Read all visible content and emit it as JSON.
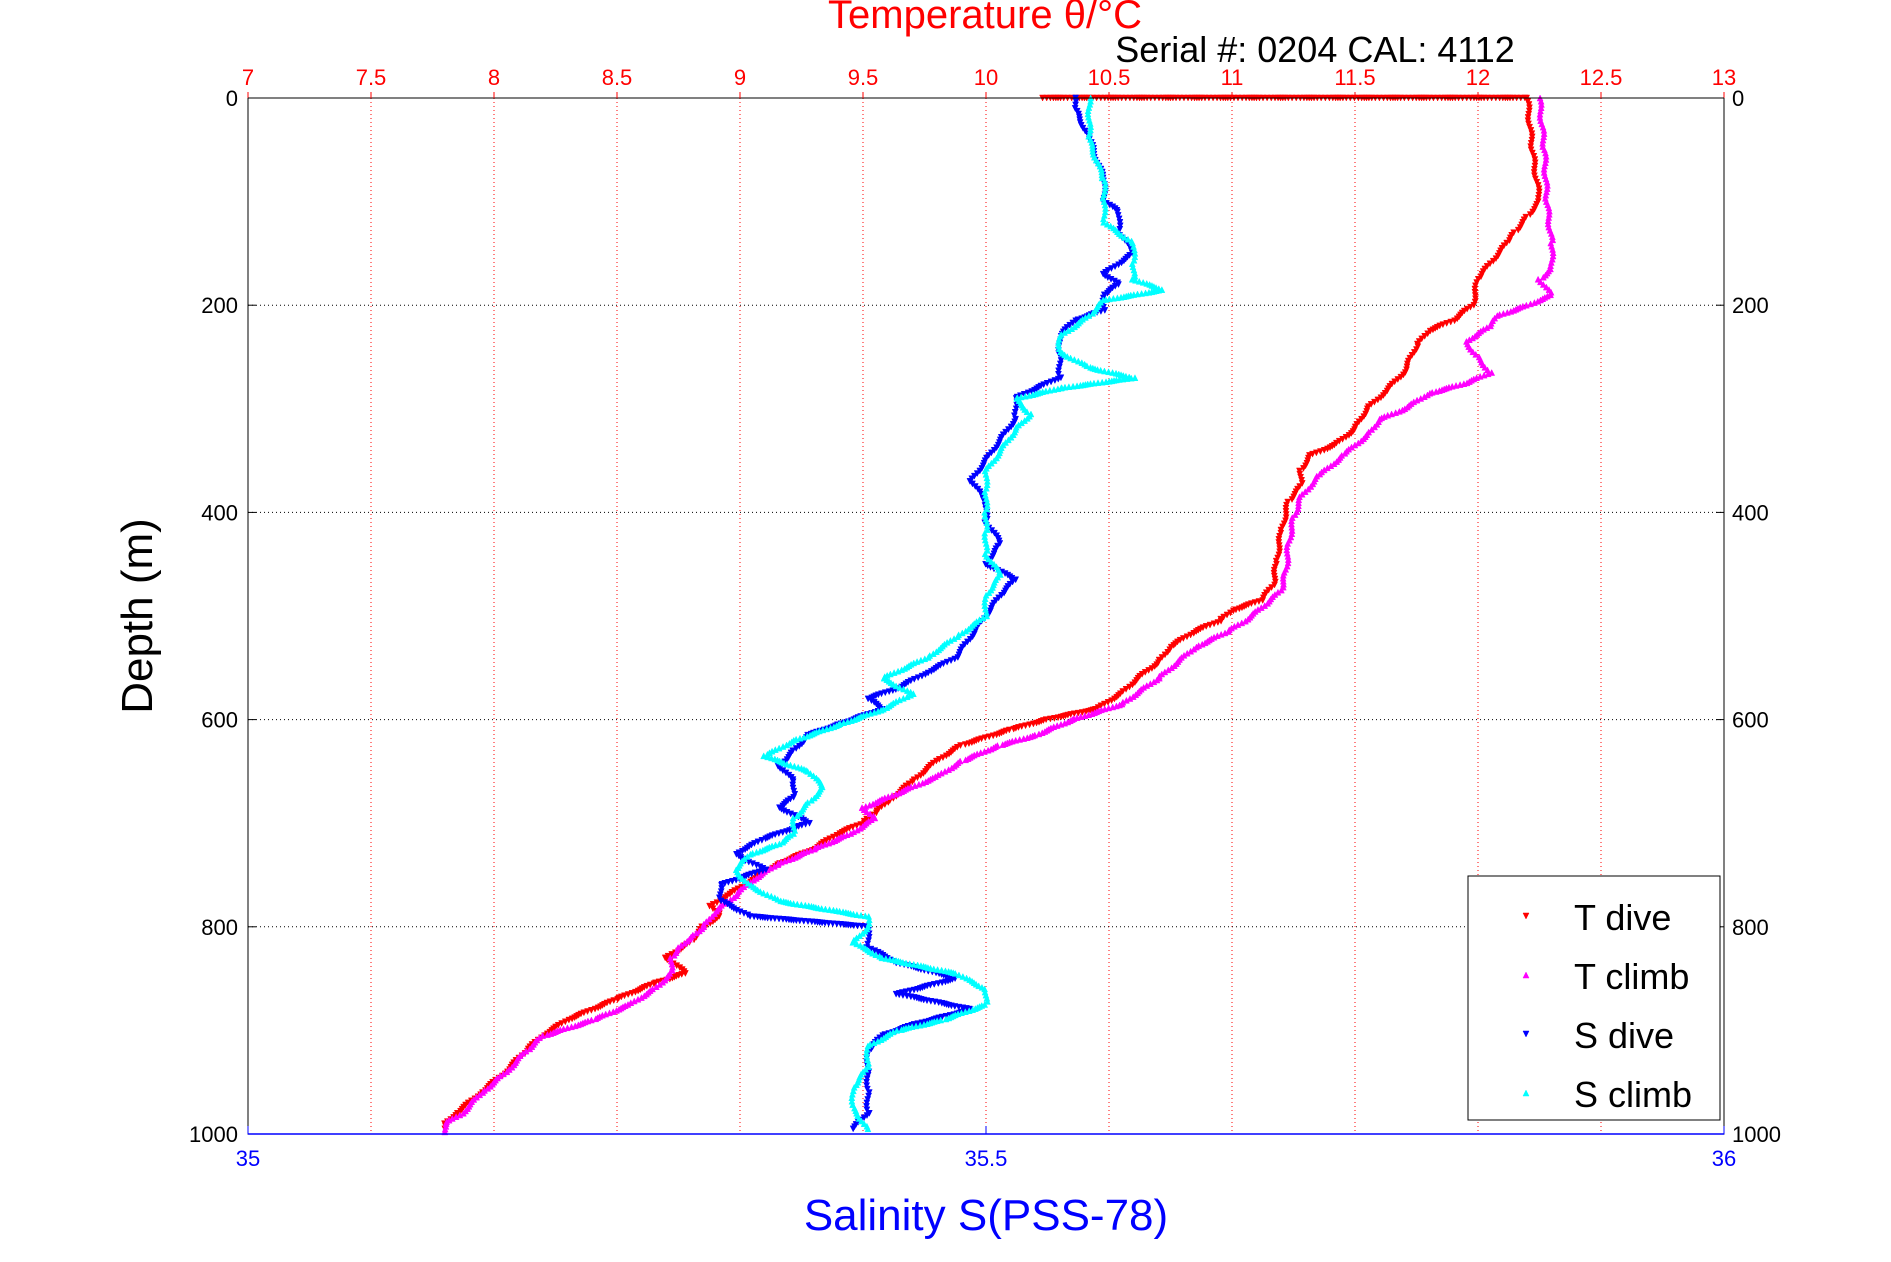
{
  "chart_data": {
    "type": "scatter",
    "title": "Temperature θ/°C",
    "subtitle": "Serial #: 0204  CAL: 4112",
    "ylabel": "Depth (m)",
    "xlabel": "Salinity S(PSS-78)",
    "ylim": [
      0,
      1000
    ],
    "y_reversed": true,
    "temperature_axis": {
      "position": "top",
      "range": [
        7,
        13
      ],
      "ticks": [
        "7",
        "7.5",
        "8",
        "8.5",
        "9",
        "9.5",
        "10",
        "10.5",
        "11",
        "11.5",
        "12",
        "12.5",
        "13"
      ],
      "color": "#ff0000",
      "grid": true
    },
    "salinity_axis": {
      "position": "bottom",
      "range": [
        35,
        36
      ],
      "ticks": [
        "35",
        "35.5",
        "36"
      ],
      "color": "#0000ff"
    },
    "depth_ticks": [
      "0",
      "200",
      "400",
      "600",
      "800",
      "1000"
    ],
    "legend_position": "bottom-right",
    "series": [
      {
        "name": "T dive",
        "axis": "temperature",
        "color": "#ff0000",
        "marker": "down-triangle",
        "points": [
          [
            10.23,
            0
          ],
          [
            12.2,
            0
          ],
          [
            12.22,
            50
          ],
          [
            12.25,
            100
          ],
          [
            12.2,
            115
          ],
          [
            12.15,
            130
          ],
          [
            12.12,
            140
          ],
          [
            12.05,
            160
          ],
          [
            12.0,
            175
          ],
          [
            11.98,
            200
          ],
          [
            11.9,
            215
          ],
          [
            11.8,
            225
          ],
          [
            11.75,
            240
          ],
          [
            11.7,
            265
          ],
          [
            11.62,
            285
          ],
          [
            11.55,
            300
          ],
          [
            11.5,
            320
          ],
          [
            11.42,
            335
          ],
          [
            11.32,
            345
          ],
          [
            11.28,
            360
          ],
          [
            11.28,
            375
          ],
          [
            11.23,
            390
          ],
          [
            11.2,
            420
          ],
          [
            11.18,
            450
          ],
          [
            11.17,
            470
          ],
          [
            11.12,
            485
          ],
          [
            11.0,
            495
          ],
          [
            10.95,
            505
          ],
          [
            10.85,
            515
          ],
          [
            10.75,
            530
          ],
          [
            10.7,
            545
          ],
          [
            10.62,
            560
          ],
          [
            10.55,
            575
          ],
          [
            10.45,
            590
          ],
          [
            10.25,
            600
          ],
          [
            10.1,
            610
          ],
          [
            9.9,
            625
          ],
          [
            9.8,
            640
          ],
          [
            9.7,
            660
          ],
          [
            9.6,
            680
          ],
          [
            9.55,
            690
          ],
          [
            9.5,
            700
          ],
          [
            9.4,
            710
          ],
          [
            9.3,
            725
          ],
          [
            9.15,
            740
          ],
          [
            9.05,
            755
          ],
          [
            8.95,
            770
          ],
          [
            8.88,
            780
          ],
          [
            8.92,
            790
          ],
          [
            8.85,
            800
          ],
          [
            8.8,
            815
          ],
          [
            8.7,
            830
          ],
          [
            8.78,
            845
          ],
          [
            8.65,
            855
          ],
          [
            8.5,
            870
          ],
          [
            8.3,
            890
          ],
          [
            8.2,
            905
          ],
          [
            8.13,
            920
          ],
          [
            8.05,
            940
          ],
          [
            7.95,
            960
          ],
          [
            7.85,
            980
          ],
          [
            7.8,
            990
          ],
          [
            7.8,
            995
          ]
        ]
      },
      {
        "name": "T climb",
        "axis": "temperature",
        "color": "#ff00ff",
        "marker": "up-triangle",
        "points": [
          [
            12.25,
            0
          ],
          [
            12.27,
            50
          ],
          [
            12.28,
            100
          ],
          [
            12.3,
            140
          ],
          [
            12.3,
            165
          ],
          [
            12.25,
            175
          ],
          [
            12.3,
            190
          ],
          [
            12.2,
            200
          ],
          [
            12.08,
            210
          ],
          [
            12.05,
            220
          ],
          [
            11.95,
            235
          ],
          [
            12.0,
            250
          ],
          [
            12.05,
            265
          ],
          [
            11.95,
            275
          ],
          [
            11.8,
            285
          ],
          [
            11.7,
            300
          ],
          [
            11.6,
            310
          ],
          [
            11.55,
            325
          ],
          [
            11.45,
            345
          ],
          [
            11.35,
            365
          ],
          [
            11.28,
            385
          ],
          [
            11.25,
            405
          ],
          [
            11.23,
            430
          ],
          [
            11.22,
            455
          ],
          [
            11.2,
            475
          ],
          [
            11.13,
            490
          ],
          [
            11.05,
            505
          ],
          [
            10.98,
            515
          ],
          [
            10.85,
            530
          ],
          [
            10.7,
            560
          ],
          [
            10.55,
            585
          ],
          [
            10.35,
            600
          ],
          [
            10.2,
            615
          ],
          [
            10.05,
            625
          ],
          [
            9.9,
            640
          ],
          [
            9.8,
            655
          ],
          [
            9.7,
            665
          ],
          [
            9.5,
            685
          ],
          [
            9.55,
            695
          ],
          [
            9.45,
            710
          ],
          [
            9.3,
            725
          ],
          [
            9.15,
            740
          ],
          [
            9.05,
            755
          ],
          [
            8.98,
            770
          ],
          [
            8.9,
            785
          ],
          [
            8.85,
            800
          ],
          [
            8.8,
            810
          ],
          [
            8.75,
            820
          ],
          [
            8.72,
            830
          ],
          [
            8.72,
            845
          ],
          [
            8.65,
            860
          ],
          [
            8.55,
            875
          ],
          [
            8.4,
            890
          ],
          [
            8.2,
            905
          ],
          [
            8.13,
            920
          ],
          [
            8.05,
            940
          ],
          [
            7.95,
            960
          ],
          [
            7.87,
            980
          ],
          [
            7.8,
            990
          ],
          [
            7.8,
            998
          ]
        ]
      },
      {
        "name": "S dive",
        "axis": "salinity",
        "color": "#0000ff",
        "marker": "down-triangle",
        "points": [
          [
            35.56,
            0
          ],
          [
            35.56,
            10
          ],
          [
            35.57,
            40
          ],
          [
            35.58,
            80
          ],
          [
            35.58,
            100
          ],
          [
            35.59,
            110
          ],
          [
            35.59,
            130
          ],
          [
            35.6,
            150
          ],
          [
            35.58,
            170
          ],
          [
            35.59,
            180
          ],
          [
            35.58,
            190
          ],
          [
            35.58,
            205
          ],
          [
            35.56,
            215
          ],
          [
            35.55,
            230
          ],
          [
            35.55,
            250
          ],
          [
            35.55,
            270
          ],
          [
            35.52,
            290
          ],
          [
            35.52,
            310
          ],
          [
            35.51,
            330
          ],
          [
            35.5,
            350
          ],
          [
            35.49,
            370
          ],
          [
            35.5,
            390
          ],
          [
            35.5,
            410
          ],
          [
            35.51,
            430
          ],
          [
            35.5,
            450
          ],
          [
            35.52,
            465
          ],
          [
            35.51,
            480
          ],
          [
            35.5,
            500
          ],
          [
            35.49,
            520
          ],
          [
            35.48,
            540
          ],
          [
            35.46,
            555
          ],
          [
            35.44,
            570
          ],
          [
            35.42,
            580
          ],
          [
            35.43,
            590
          ],
          [
            35.4,
            605
          ],
          [
            35.38,
            615
          ],
          [
            35.37,
            630
          ],
          [
            35.36,
            645
          ],
          [
            35.37,
            660
          ],
          [
            35.37,
            675
          ],
          [
            35.36,
            685
          ],
          [
            35.38,
            700
          ],
          [
            35.35,
            715
          ],
          [
            35.33,
            730
          ],
          [
            35.35,
            745
          ],
          [
            35.32,
            760
          ],
          [
            35.32,
            775
          ],
          [
            35.34,
            790
          ],
          [
            35.42,
            800
          ],
          [
            35.42,
            820
          ],
          [
            35.44,
            835
          ],
          [
            35.48,
            850
          ],
          [
            35.44,
            865
          ],
          [
            35.49,
            880
          ],
          [
            35.45,
            895
          ],
          [
            35.43,
            905
          ],
          [
            35.42,
            920
          ],
          [
            35.42,
            940
          ],
          [
            35.42,
            960
          ],
          [
            35.42,
            980
          ],
          [
            35.41,
            995
          ]
        ]
      },
      {
        "name": "S climb",
        "axis": "salinity",
        "color": "#00ffff",
        "marker": "up-triangle",
        "points": [
          [
            35.57,
            0
          ],
          [
            35.57,
            40
          ],
          [
            35.58,
            80
          ],
          [
            35.58,
            100
          ],
          [
            35.58,
            120
          ],
          [
            35.6,
            140
          ],
          [
            35.6,
            160
          ],
          [
            35.6,
            175
          ],
          [
            35.62,
            185
          ],
          [
            35.58,
            195
          ],
          [
            35.57,
            210
          ],
          [
            35.55,
            230
          ],
          [
            35.55,
            245
          ],
          [
            35.57,
            260
          ],
          [
            35.6,
            270
          ],
          [
            35.55,
            280
          ],
          [
            35.52,
            290
          ],
          [
            35.53,
            305
          ],
          [
            35.52,
            320
          ],
          [
            35.51,
            340
          ],
          [
            35.5,
            360
          ],
          [
            35.5,
            380
          ],
          [
            35.5,
            400
          ],
          [
            35.5,
            420
          ],
          [
            35.5,
            440
          ],
          [
            35.51,
            460
          ],
          [
            35.5,
            480
          ],
          [
            35.5,
            500
          ],
          [
            35.48,
            520
          ],
          [
            35.46,
            540
          ],
          [
            35.43,
            560
          ],
          [
            35.45,
            575
          ],
          [
            35.43,
            590
          ],
          [
            35.4,
            605
          ],
          [
            35.37,
            620
          ],
          [
            35.35,
            635
          ],
          [
            35.38,
            650
          ],
          [
            35.39,
            665
          ],
          [
            35.38,
            680
          ],
          [
            35.37,
            695
          ],
          [
            35.37,
            710
          ],
          [
            35.36,
            720
          ],
          [
            35.34,
            730
          ],
          [
            35.33,
            745
          ],
          [
            35.34,
            760
          ],
          [
            35.36,
            775
          ],
          [
            35.4,
            785
          ],
          [
            35.42,
            790
          ],
          [
            35.42,
            800
          ],
          [
            35.41,
            815
          ],
          [
            35.43,
            830
          ],
          [
            35.48,
            845
          ],
          [
            35.5,
            860
          ],
          [
            35.5,
            875
          ],
          [
            35.47,
            890
          ],
          [
            35.44,
            900
          ],
          [
            35.42,
            915
          ],
          [
            35.42,
            935
          ],
          [
            35.41,
            955
          ],
          [
            35.41,
            975
          ],
          [
            35.42,
            995
          ]
        ]
      }
    ]
  }
}
